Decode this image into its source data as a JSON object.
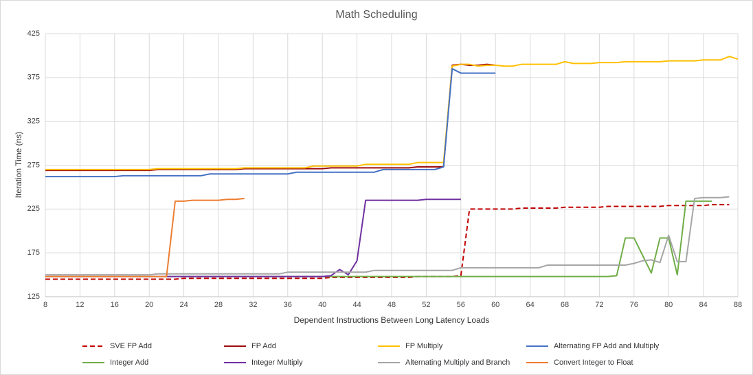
{
  "chart_data": {
    "type": "line",
    "title": "Math Scheduling",
    "x_label": "Dependent Instructions Between Long Latency Loads",
    "y_label": "Iteration Time (ns)",
    "xlim": [
      8,
      88
    ],
    "xticks": [
      8,
      12,
      16,
      20,
      24,
      28,
      32,
      36,
      40,
      44,
      48,
      52,
      56,
      60,
      64,
      68,
      72,
      76,
      80,
      84,
      88
    ],
    "ylim": [
      125,
      425
    ],
    "yticks": [
      125,
      175,
      225,
      275,
      325,
      375,
      425
    ],
    "grid": true,
    "legend": "bottom",
    "x": [
      8,
      9,
      10,
      11,
      12,
      13,
      14,
      15,
      16,
      17,
      18,
      19,
      20,
      21,
      22,
      23,
      24,
      25,
      26,
      27,
      28,
      29,
      30,
      31,
      32,
      33,
      34,
      35,
      36,
      37,
      38,
      39,
      40,
      41,
      42,
      43,
      44,
      45,
      46,
      47,
      48,
      49,
      50,
      51,
      52,
      53,
      54,
      55,
      56,
      57,
      58,
      59,
      60,
      61,
      62,
      63,
      64,
      65,
      66,
      67,
      68,
      69,
      70,
      71,
      72,
      73,
      74,
      75,
      76,
      77,
      78,
      79,
      80,
      81,
      82,
      83,
      84,
      85,
      86,
      87,
      88
    ],
    "series": [
      {
        "name": "SVE FP Add",
        "color": "#c00000",
        "dashed": true,
        "values": [
          145,
          145,
          145,
          145,
          145,
          145,
          145,
          145,
          145,
          145,
          145,
          145,
          145,
          145,
          145,
          145,
          146,
          146,
          146,
          146,
          146,
          146,
          146,
          146,
          146,
          146,
          146,
          146,
          146,
          146,
          146,
          146,
          146,
          147,
          147,
          147,
          147,
          147,
          147,
          147,
          147,
          147,
          147,
          148,
          148,
          148,
          148,
          148,
          149,
          225,
          225,
          225,
          225,
          225,
          225,
          226,
          226,
          226,
          226,
          226,
          227,
          227,
          227,
          227,
          227,
          228,
          228,
          228,
          228,
          228,
          228,
          228,
          229,
          229,
          229,
          229,
          229,
          230,
          230,
          230,
          null
        ]
      },
      {
        "name": "FP Add",
        "color": "#9e0b0f",
        "values": [
          269,
          269,
          269,
          269,
          269,
          269,
          269,
          269,
          269,
          269,
          269,
          269,
          269,
          270,
          270,
          270,
          270,
          270,
          270,
          270,
          270,
          270,
          270,
          271,
          271,
          271,
          271,
          271,
          271,
          271,
          271,
          271,
          271,
          272,
          272,
          272,
          272,
          272,
          272,
          272,
          272,
          272,
          272,
          273,
          273,
          273,
          273,
          389,
          390,
          389,
          389,
          390,
          389,
          null,
          null,
          null,
          null,
          null,
          null,
          null,
          null,
          null,
          null,
          null,
          null,
          null,
          null,
          null,
          null,
          null,
          null,
          null,
          null,
          null,
          null,
          null,
          null,
          null,
          null,
          null,
          null
        ]
      },
      {
        "name": "FP Multiply",
        "color": "#ffc000",
        "values": [
          270,
          270,
          270,
          270,
          270,
          270,
          270,
          270,
          270,
          270,
          270,
          270,
          270,
          271,
          271,
          271,
          271,
          271,
          271,
          271,
          271,
          271,
          271,
          272,
          272,
          272,
          272,
          272,
          272,
          272,
          272,
          274,
          274,
          274,
          274,
          274,
          274,
          276,
          276,
          276,
          276,
          276,
          276,
          278,
          278,
          278,
          278,
          388,
          390,
          390,
          388,
          389,
          389,
          388,
          388,
          390,
          390,
          390,
          390,
          390,
          393,
          391,
          391,
          391,
          392,
          392,
          392,
          393,
          393,
          393,
          393,
          393,
          394,
          394,
          394,
          394,
          395,
          395,
          395,
          399,
          396
        ]
      },
      {
        "name": "Alternating FP Add and Multiply",
        "color": "#4472c4",
        "values": [
          262,
          262,
          262,
          262,
          262,
          262,
          262,
          262,
          262,
          263,
          263,
          263,
          263,
          263,
          263,
          263,
          263,
          263,
          263,
          265,
          265,
          265,
          265,
          265,
          265,
          265,
          265,
          265,
          265,
          267,
          267,
          267,
          267,
          267,
          267,
          267,
          267,
          267,
          267,
          270,
          270,
          270,
          270,
          270,
          270,
          270,
          273,
          385,
          380,
          380,
          380,
          380,
          380,
          null,
          null,
          null,
          null,
          null,
          null,
          null,
          null,
          null,
          null,
          null,
          null,
          null,
          null,
          null,
          null,
          null,
          null,
          null,
          null,
          null,
          null,
          null,
          null,
          null,
          null,
          null,
          null
        ]
      },
      {
        "name": "Integer Add",
        "color": "#70ad47",
        "values": [
          148,
          148,
          148,
          148,
          148,
          148,
          148,
          148,
          148,
          148,
          148,
          148,
          148,
          148,
          148,
          148,
          148,
          148,
          148,
          148,
          148,
          148,
          148,
          148,
          148,
          148,
          148,
          148,
          148,
          148,
          148,
          148,
          148,
          148,
          148,
          148,
          148,
          148,
          148,
          148,
          148,
          148,
          148,
          148,
          148,
          148,
          148,
          148,
          148,
          148,
          148,
          148,
          148,
          148,
          148,
          148,
          148,
          148,
          148,
          148,
          148,
          148,
          148,
          148,
          148,
          148,
          149,
          192,
          192,
          172,
          152,
          192,
          192,
          150,
          234,
          234,
          234,
          234,
          null,
          null,
          null
        ]
      },
      {
        "name": "Integer Multiply",
        "color": "#7030a0",
        "values": [
          148,
          148,
          148,
          148,
          148,
          148,
          148,
          148,
          148,
          148,
          148,
          148,
          148,
          148,
          148,
          148,
          148,
          148,
          148,
          148,
          148,
          148,
          148,
          148,
          148,
          148,
          148,
          148,
          148,
          148,
          148,
          148,
          148,
          149,
          156,
          150,
          166,
          235,
          235,
          235,
          235,
          235,
          235,
          235,
          236,
          236,
          236,
          236,
          236,
          null,
          null,
          null,
          null,
          null,
          null,
          null,
          null,
          null,
          null,
          null,
          null,
          null,
          null,
          null,
          null,
          null,
          null,
          null,
          null,
          null,
          null,
          null,
          null,
          null,
          null,
          null,
          null,
          null,
          null,
          null,
          null
        ]
      },
      {
        "name": "Alternating Multiply and Branch",
        "color": "#a5a5a5",
        "values": [
          150,
          150,
          150,
          150,
          150,
          150,
          150,
          150,
          150,
          150,
          150,
          150,
          150,
          151,
          151,
          151,
          151,
          151,
          151,
          151,
          151,
          151,
          151,
          151,
          151,
          151,
          151,
          151,
          153,
          153,
          153,
          153,
          153,
          153,
          153,
          153,
          153,
          153,
          155,
          155,
          155,
          155,
          155,
          155,
          155,
          155,
          155,
          155,
          158,
          158,
          158,
          158,
          158,
          158,
          158,
          158,
          158,
          158,
          161,
          161,
          161,
          161,
          161,
          161,
          161,
          161,
          161,
          161,
          163,
          166,
          167,
          164,
          195,
          165,
          165,
          237,
          238,
          238,
          238,
          239,
          null
        ]
      },
      {
        "name": "Convert Integer to Float",
        "color": "#ed7d31",
        "values": [
          148,
          148,
          148,
          148,
          148,
          148,
          148,
          148,
          148,
          148,
          148,
          148,
          148,
          148,
          148,
          234,
          234,
          235,
          235,
          235,
          235,
          236,
          236,
          237,
          null,
          null,
          null,
          null,
          null,
          null,
          null,
          null,
          null,
          null,
          null,
          null,
          null,
          null,
          null,
          null,
          null,
          null,
          null,
          null,
          null,
          null,
          null,
          null,
          null,
          null,
          null,
          null,
          null,
          null,
          null,
          null,
          null,
          null,
          null,
          null,
          null,
          null,
          null,
          null,
          null,
          null,
          null,
          null,
          null,
          null,
          null,
          null,
          null,
          null,
          null,
          null,
          null,
          null,
          null,
          null,
          null
        ]
      }
    ]
  }
}
